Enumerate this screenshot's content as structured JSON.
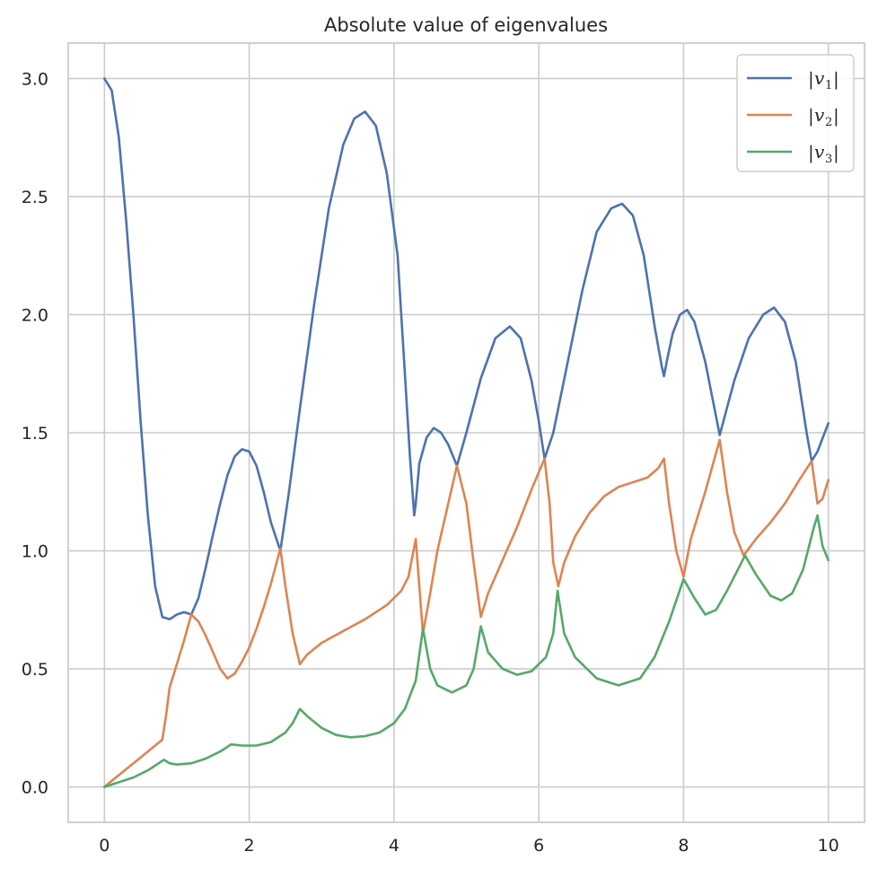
{
  "chart_data": {
    "type": "line",
    "title": "Absolute value of eigenvalues",
    "xlabel": "",
    "ylabel": "",
    "xlim": [
      -0.5,
      10.5
    ],
    "ylim": [
      -0.15,
      3.15
    ],
    "xticks": [
      "0",
      "2",
      "4",
      "6",
      "8",
      "10"
    ],
    "yticks": [
      "0.0",
      "0.5",
      "1.0",
      "1.5",
      "2.0",
      "2.5",
      "3.0"
    ],
    "grid": true,
    "legend_position": "top-right",
    "series": [
      {
        "name": "v",
        "subscript": "1",
        "color": "#4c72b0",
        "points": [
          [
            0,
            3.0
          ],
          [
            0.1,
            2.95
          ],
          [
            0.2,
            2.75
          ],
          [
            0.3,
            2.4
          ],
          [
            0.4,
            2.0
          ],
          [
            0.5,
            1.55
          ],
          [
            0.6,
            1.15
          ],
          [
            0.7,
            0.85
          ],
          [
            0.8,
            0.72
          ],
          [
            0.9,
            0.71
          ],
          [
            1.0,
            0.73
          ],
          [
            1.1,
            0.74
          ],
          [
            1.2,
            0.73
          ],
          [
            1.3,
            0.8
          ],
          [
            1.4,
            0.93
          ],
          [
            1.5,
            1.07
          ],
          [
            1.6,
            1.2
          ],
          [
            1.7,
            1.32
          ],
          [
            1.8,
            1.4
          ],
          [
            1.9,
            1.43
          ],
          [
            2.0,
            1.42
          ],
          [
            2.1,
            1.36
          ],
          [
            2.2,
            1.25
          ],
          [
            2.3,
            1.12
          ],
          [
            2.43,
            1.0
          ],
          [
            2.55,
            1.25
          ],
          [
            2.7,
            1.6
          ],
          [
            2.9,
            2.05
          ],
          [
            3.1,
            2.45
          ],
          [
            3.3,
            2.72
          ],
          [
            3.45,
            2.83
          ],
          [
            3.6,
            2.86
          ],
          [
            3.75,
            2.8
          ],
          [
            3.9,
            2.6
          ],
          [
            4.05,
            2.25
          ],
          [
            4.15,
            1.75
          ],
          [
            4.22,
            1.4
          ],
          [
            4.28,
            1.15
          ],
          [
            4.3,
            1.2
          ],
          [
            4.35,
            1.37
          ],
          [
            4.45,
            1.48
          ],
          [
            4.55,
            1.52
          ],
          [
            4.65,
            1.5
          ],
          [
            4.75,
            1.45
          ],
          [
            4.87,
            1.36
          ],
          [
            5.0,
            1.5
          ],
          [
            5.2,
            1.73
          ],
          [
            5.4,
            1.9
          ],
          [
            5.6,
            1.95
          ],
          [
            5.75,
            1.9
          ],
          [
            5.9,
            1.72
          ],
          [
            6.0,
            1.55
          ],
          [
            6.08,
            1.39
          ],
          [
            6.2,
            1.5
          ],
          [
            6.4,
            1.8
          ],
          [
            6.6,
            2.1
          ],
          [
            6.8,
            2.35
          ],
          [
            7.0,
            2.45
          ],
          [
            7.15,
            2.47
          ],
          [
            7.3,
            2.42
          ],
          [
            7.45,
            2.25
          ],
          [
            7.6,
            1.95
          ],
          [
            7.7,
            1.78
          ],
          [
            7.73,
            1.74
          ],
          [
            7.78,
            1.82
          ],
          [
            7.85,
            1.92
          ],
          [
            7.95,
            2.0
          ],
          [
            8.05,
            2.02
          ],
          [
            8.15,
            1.97
          ],
          [
            8.3,
            1.8
          ],
          [
            8.5,
            1.49
          ],
          [
            8.7,
            1.72
          ],
          [
            8.9,
            1.9
          ],
          [
            9.1,
            2.0
          ],
          [
            9.25,
            2.03
          ],
          [
            9.4,
            1.97
          ],
          [
            9.55,
            1.8
          ],
          [
            9.7,
            1.5
          ],
          [
            9.77,
            1.38
          ],
          [
            9.85,
            1.42
          ],
          [
            9.95,
            1.5
          ],
          [
            10.0,
            1.54
          ]
        ]
      },
      {
        "name": "v",
        "subscript": "2",
        "color": "#dd8452",
        "points": [
          [
            0,
            0.0
          ],
          [
            0.2,
            0.05
          ],
          [
            0.4,
            0.1
          ],
          [
            0.6,
            0.15
          ],
          [
            0.8,
            0.2
          ],
          [
            0.85,
            0.3
          ],
          [
            0.9,
            0.42
          ],
          [
            1.0,
            0.52
          ],
          [
            1.1,
            0.62
          ],
          [
            1.2,
            0.73
          ],
          [
            1.3,
            0.7
          ],
          [
            1.4,
            0.64
          ],
          [
            1.5,
            0.57
          ],
          [
            1.6,
            0.5
          ],
          [
            1.7,
            0.46
          ],
          [
            1.8,
            0.48
          ],
          [
            1.9,
            0.53
          ],
          [
            2.0,
            0.59
          ],
          [
            2.1,
            0.67
          ],
          [
            2.2,
            0.76
          ],
          [
            2.3,
            0.86
          ],
          [
            2.43,
            1.01
          ],
          [
            2.5,
            0.85
          ],
          [
            2.6,
            0.65
          ],
          [
            2.7,
            0.52
          ],
          [
            2.8,
            0.56
          ],
          [
            3.0,
            0.61
          ],
          [
            3.3,
            0.66
          ],
          [
            3.6,
            0.71
          ],
          [
            3.9,
            0.77
          ],
          [
            4.1,
            0.83
          ],
          [
            4.2,
            0.89
          ],
          [
            4.3,
            1.05
          ],
          [
            4.4,
            0.65
          ],
          [
            4.5,
            0.82
          ],
          [
            4.6,
            1.0
          ],
          [
            4.75,
            1.2
          ],
          [
            4.87,
            1.36
          ],
          [
            5.0,
            1.2
          ],
          [
            5.1,
            0.95
          ],
          [
            5.2,
            0.72
          ],
          [
            5.3,
            0.82
          ],
          [
            5.5,
            0.96
          ],
          [
            5.7,
            1.1
          ],
          [
            5.9,
            1.26
          ],
          [
            6.08,
            1.39
          ],
          [
            6.15,
            1.2
          ],
          [
            6.2,
            0.95
          ],
          [
            6.27,
            0.85
          ],
          [
            6.35,
            0.95
          ],
          [
            6.5,
            1.06
          ],
          [
            6.7,
            1.16
          ],
          [
            6.9,
            1.23
          ],
          [
            7.1,
            1.27
          ],
          [
            7.3,
            1.29
          ],
          [
            7.5,
            1.31
          ],
          [
            7.65,
            1.35
          ],
          [
            7.73,
            1.39
          ],
          [
            7.8,
            1.2
          ],
          [
            7.9,
            1.0
          ],
          [
            8.0,
            0.89
          ],
          [
            8.1,
            1.05
          ],
          [
            8.3,
            1.25
          ],
          [
            8.5,
            1.47
          ],
          [
            8.6,
            1.25
          ],
          [
            8.7,
            1.08
          ],
          [
            8.83,
            0.98
          ],
          [
            9.0,
            1.05
          ],
          [
            9.2,
            1.12
          ],
          [
            9.4,
            1.2
          ],
          [
            9.6,
            1.3
          ],
          [
            9.77,
            1.38
          ],
          [
            9.85,
            1.2
          ],
          [
            9.92,
            1.22
          ],
          [
            10.0,
            1.3
          ]
        ]
      },
      {
        "name": "v",
        "subscript": "3",
        "color": "#55a868",
        "points": [
          [
            0,
            0.0
          ],
          [
            0.2,
            0.02
          ],
          [
            0.4,
            0.04
          ],
          [
            0.6,
            0.07
          ],
          [
            0.75,
            0.1
          ],
          [
            0.82,
            0.115
          ],
          [
            0.9,
            0.1
          ],
          [
            1.0,
            0.095
          ],
          [
            1.2,
            0.1
          ],
          [
            1.4,
            0.12
          ],
          [
            1.6,
            0.15
          ],
          [
            1.75,
            0.18
          ],
          [
            1.9,
            0.175
          ],
          [
            2.1,
            0.175
          ],
          [
            2.3,
            0.19
          ],
          [
            2.5,
            0.23
          ],
          [
            2.6,
            0.27
          ],
          [
            2.7,
            0.33
          ],
          [
            2.8,
            0.3
          ],
          [
            3.0,
            0.25
          ],
          [
            3.2,
            0.22
          ],
          [
            3.4,
            0.21
          ],
          [
            3.6,
            0.215
          ],
          [
            3.8,
            0.23
          ],
          [
            4.0,
            0.27
          ],
          [
            4.15,
            0.33
          ],
          [
            4.3,
            0.45
          ],
          [
            4.4,
            0.67
          ],
          [
            4.5,
            0.5
          ],
          [
            4.6,
            0.43
          ],
          [
            4.8,
            0.4
          ],
          [
            5.0,
            0.43
          ],
          [
            5.1,
            0.5
          ],
          [
            5.2,
            0.68
          ],
          [
            5.3,
            0.57
          ],
          [
            5.5,
            0.5
          ],
          [
            5.7,
            0.475
          ],
          [
            5.9,
            0.49
          ],
          [
            6.1,
            0.55
          ],
          [
            6.2,
            0.65
          ],
          [
            6.26,
            0.83
          ],
          [
            6.35,
            0.65
          ],
          [
            6.5,
            0.55
          ],
          [
            6.8,
            0.46
          ],
          [
            7.1,
            0.43
          ],
          [
            7.4,
            0.46
          ],
          [
            7.6,
            0.55
          ],
          [
            7.8,
            0.7
          ],
          [
            8.0,
            0.88
          ],
          [
            8.15,
            0.8
          ],
          [
            8.3,
            0.73
          ],
          [
            8.45,
            0.75
          ],
          [
            8.6,
            0.83
          ],
          [
            8.85,
            0.98
          ],
          [
            9.0,
            0.9
          ],
          [
            9.2,
            0.81
          ],
          [
            9.35,
            0.79
          ],
          [
            9.5,
            0.82
          ],
          [
            9.65,
            0.92
          ],
          [
            9.8,
            1.1
          ],
          [
            9.85,
            1.15
          ],
          [
            9.92,
            1.02
          ],
          [
            10.0,
            0.96
          ]
        ]
      }
    ]
  }
}
